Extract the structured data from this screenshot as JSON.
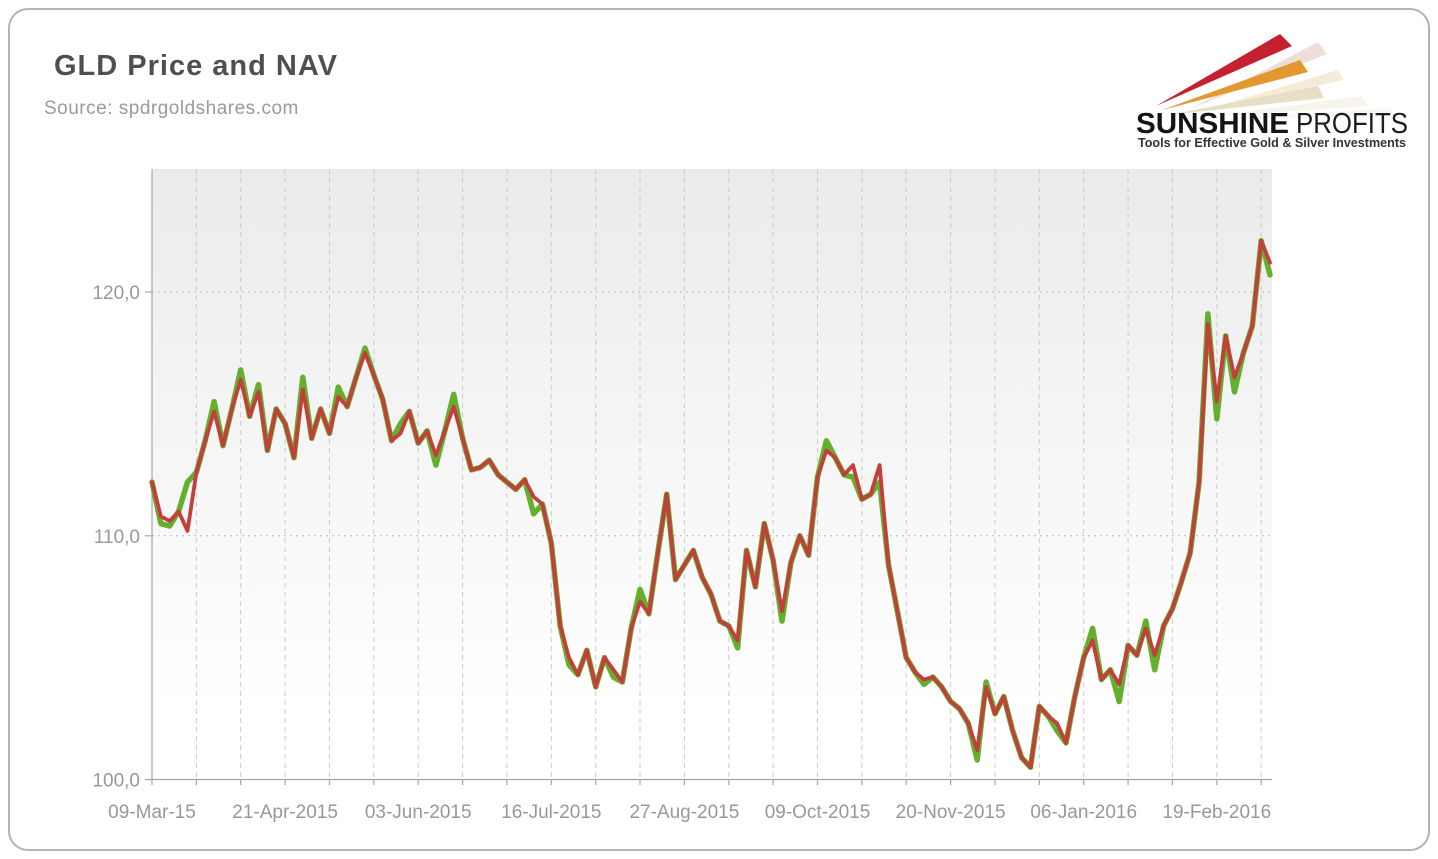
{
  "header": {
    "title": "GLD Price and NAV",
    "source": "Source: spdrgoldshares.com"
  },
  "logo": {
    "word1": "SUNSHINE",
    "word2": "PROFITS",
    "tagline": "Tools for Effective Gold & Silver Investments",
    "ray_colors": [
      "#c5202e",
      "#e1992f",
      "#e6dfc6"
    ]
  },
  "chart_data": {
    "type": "line",
    "title": "GLD Price and NAV",
    "xlabel": "",
    "ylabel": "",
    "grid": true,
    "legend": "none",
    "x_step_days": 2,
    "xlim_days": [
      0,
      252
    ],
    "ylim": [
      100,
      125.1
    ],
    "y_ticks": [
      {
        "value": 100,
        "label": "100,0"
      },
      {
        "value": 110,
        "label": "110,0"
      },
      {
        "value": 120,
        "label": "120,0"
      }
    ],
    "x_ticks": [
      {
        "day": 0,
        "label": "09-Mar-15"
      },
      {
        "day": 30,
        "label": "21-Apr-2015"
      },
      {
        "day": 60,
        "label": "03-Jun-2015"
      },
      {
        "day": 90,
        "label": "16-Jul-2015"
      },
      {
        "day": 120,
        "label": "27-Aug-2015"
      },
      {
        "day": 150,
        "label": "09-Oct-2015"
      },
      {
        "day": 180,
        "label": "20-Nov-2015"
      },
      {
        "day": 210,
        "label": "06-Jan-2016"
      },
      {
        "day": 240,
        "label": "19-Feb-2016"
      }
    ],
    "series": [
      {
        "name": "NAV",
        "color": "#64af2d",
        "width": 5.5,
        "values": [
          112.2,
          110.5,
          110.4,
          111.0,
          112.2,
          112.6,
          113.9,
          115.5,
          113.7,
          115.2,
          116.8,
          114.9,
          116.2,
          113.5,
          115.2,
          114.6,
          113.2,
          116.5,
          114.0,
          115.2,
          114.2,
          116.1,
          115.3,
          116.5,
          117.7,
          116.6,
          115.6,
          113.9,
          114.6,
          115.1,
          113.8,
          114.3,
          112.9,
          114.3,
          115.8,
          114.0,
          112.7,
          112.8,
          113.1,
          112.5,
          112.2,
          111.9,
          112.3,
          110.9,
          111.3,
          109.7,
          106.3,
          104.7,
          104.3,
          105.3,
          103.8,
          105.0,
          104.2,
          104.0,
          106.2,
          107.8,
          106.8,
          109.3,
          111.7,
          108.2,
          108.8,
          109.4,
          108.3,
          107.6,
          106.5,
          106.3,
          105.4,
          109.4,
          107.9,
          110.5,
          109.0,
          106.5,
          108.9,
          110.0,
          109.2,
          112.4,
          113.9,
          113.2,
          112.5,
          112.4,
          111.5,
          111.7,
          112.2,
          108.8,
          106.9,
          105.0,
          104.4,
          103.9,
          104.2,
          103.8,
          103.2,
          102.9,
          102.3,
          100.8,
          104.0,
          102.7,
          103.4,
          102.0,
          100.9,
          100.5,
          103.0,
          102.6,
          102.0,
          101.5,
          103.4,
          105.0,
          106.2,
          104.1,
          104.5,
          103.2,
          105.5,
          105.1,
          106.5,
          104.5,
          106.3,
          107.0,
          108.1,
          109.3,
          112.2,
          119.1,
          114.8,
          118.2,
          115.9,
          117.5,
          118.6,
          122.1,
          120.7
        ]
      },
      {
        "name": "GLD Price",
        "color": "#c2403c",
        "width": 3.8,
        "values": [
          112.2,
          110.8,
          110.6,
          111.0,
          110.2,
          112.6,
          113.9,
          115.1,
          113.7,
          115.2,
          116.4,
          114.9,
          115.9,
          113.5,
          115.2,
          114.6,
          113.2,
          116.0,
          114.0,
          115.2,
          114.2,
          115.7,
          115.3,
          116.5,
          117.5,
          116.6,
          115.6,
          113.9,
          114.2,
          115.1,
          113.8,
          114.3,
          113.3,
          114.3,
          115.3,
          114.0,
          112.7,
          112.8,
          113.1,
          112.5,
          112.2,
          111.9,
          112.3,
          111.6,
          111.3,
          109.7,
          106.3,
          105.0,
          104.3,
          105.3,
          103.8,
          105.0,
          104.5,
          104.0,
          106.2,
          107.3,
          106.8,
          109.3,
          111.7,
          108.2,
          108.8,
          109.4,
          108.3,
          107.6,
          106.5,
          106.3,
          105.7,
          109.4,
          107.9,
          110.5,
          109.0,
          106.9,
          108.9,
          110.0,
          109.2,
          112.4,
          113.5,
          113.2,
          112.5,
          112.9,
          111.5,
          111.7,
          112.9,
          108.8,
          106.9,
          105.0,
          104.4,
          104.1,
          104.2,
          103.8,
          103.2,
          102.9,
          102.3,
          101.2,
          103.8,
          102.7,
          103.4,
          102.0,
          100.9,
          100.5,
          103.0,
          102.6,
          102.3,
          101.5,
          103.4,
          105.0,
          105.7,
          104.1,
          104.5,
          103.9,
          105.5,
          105.1,
          106.2,
          105.1,
          106.3,
          107.0,
          108.1,
          109.3,
          112.2,
          118.7,
          115.5,
          118.2,
          116.5,
          117.5,
          118.6,
          122.1,
          121.2
        ]
      }
    ],
    "plot_colors": {
      "bg_top": "#ebebeb",
      "bg_bottom": "#ffffff",
      "v_grid": "#cbcbcb",
      "h_grid": "#b8b8b8",
      "axis": "#a6a6a6",
      "tick_label": "#989898"
    }
  }
}
